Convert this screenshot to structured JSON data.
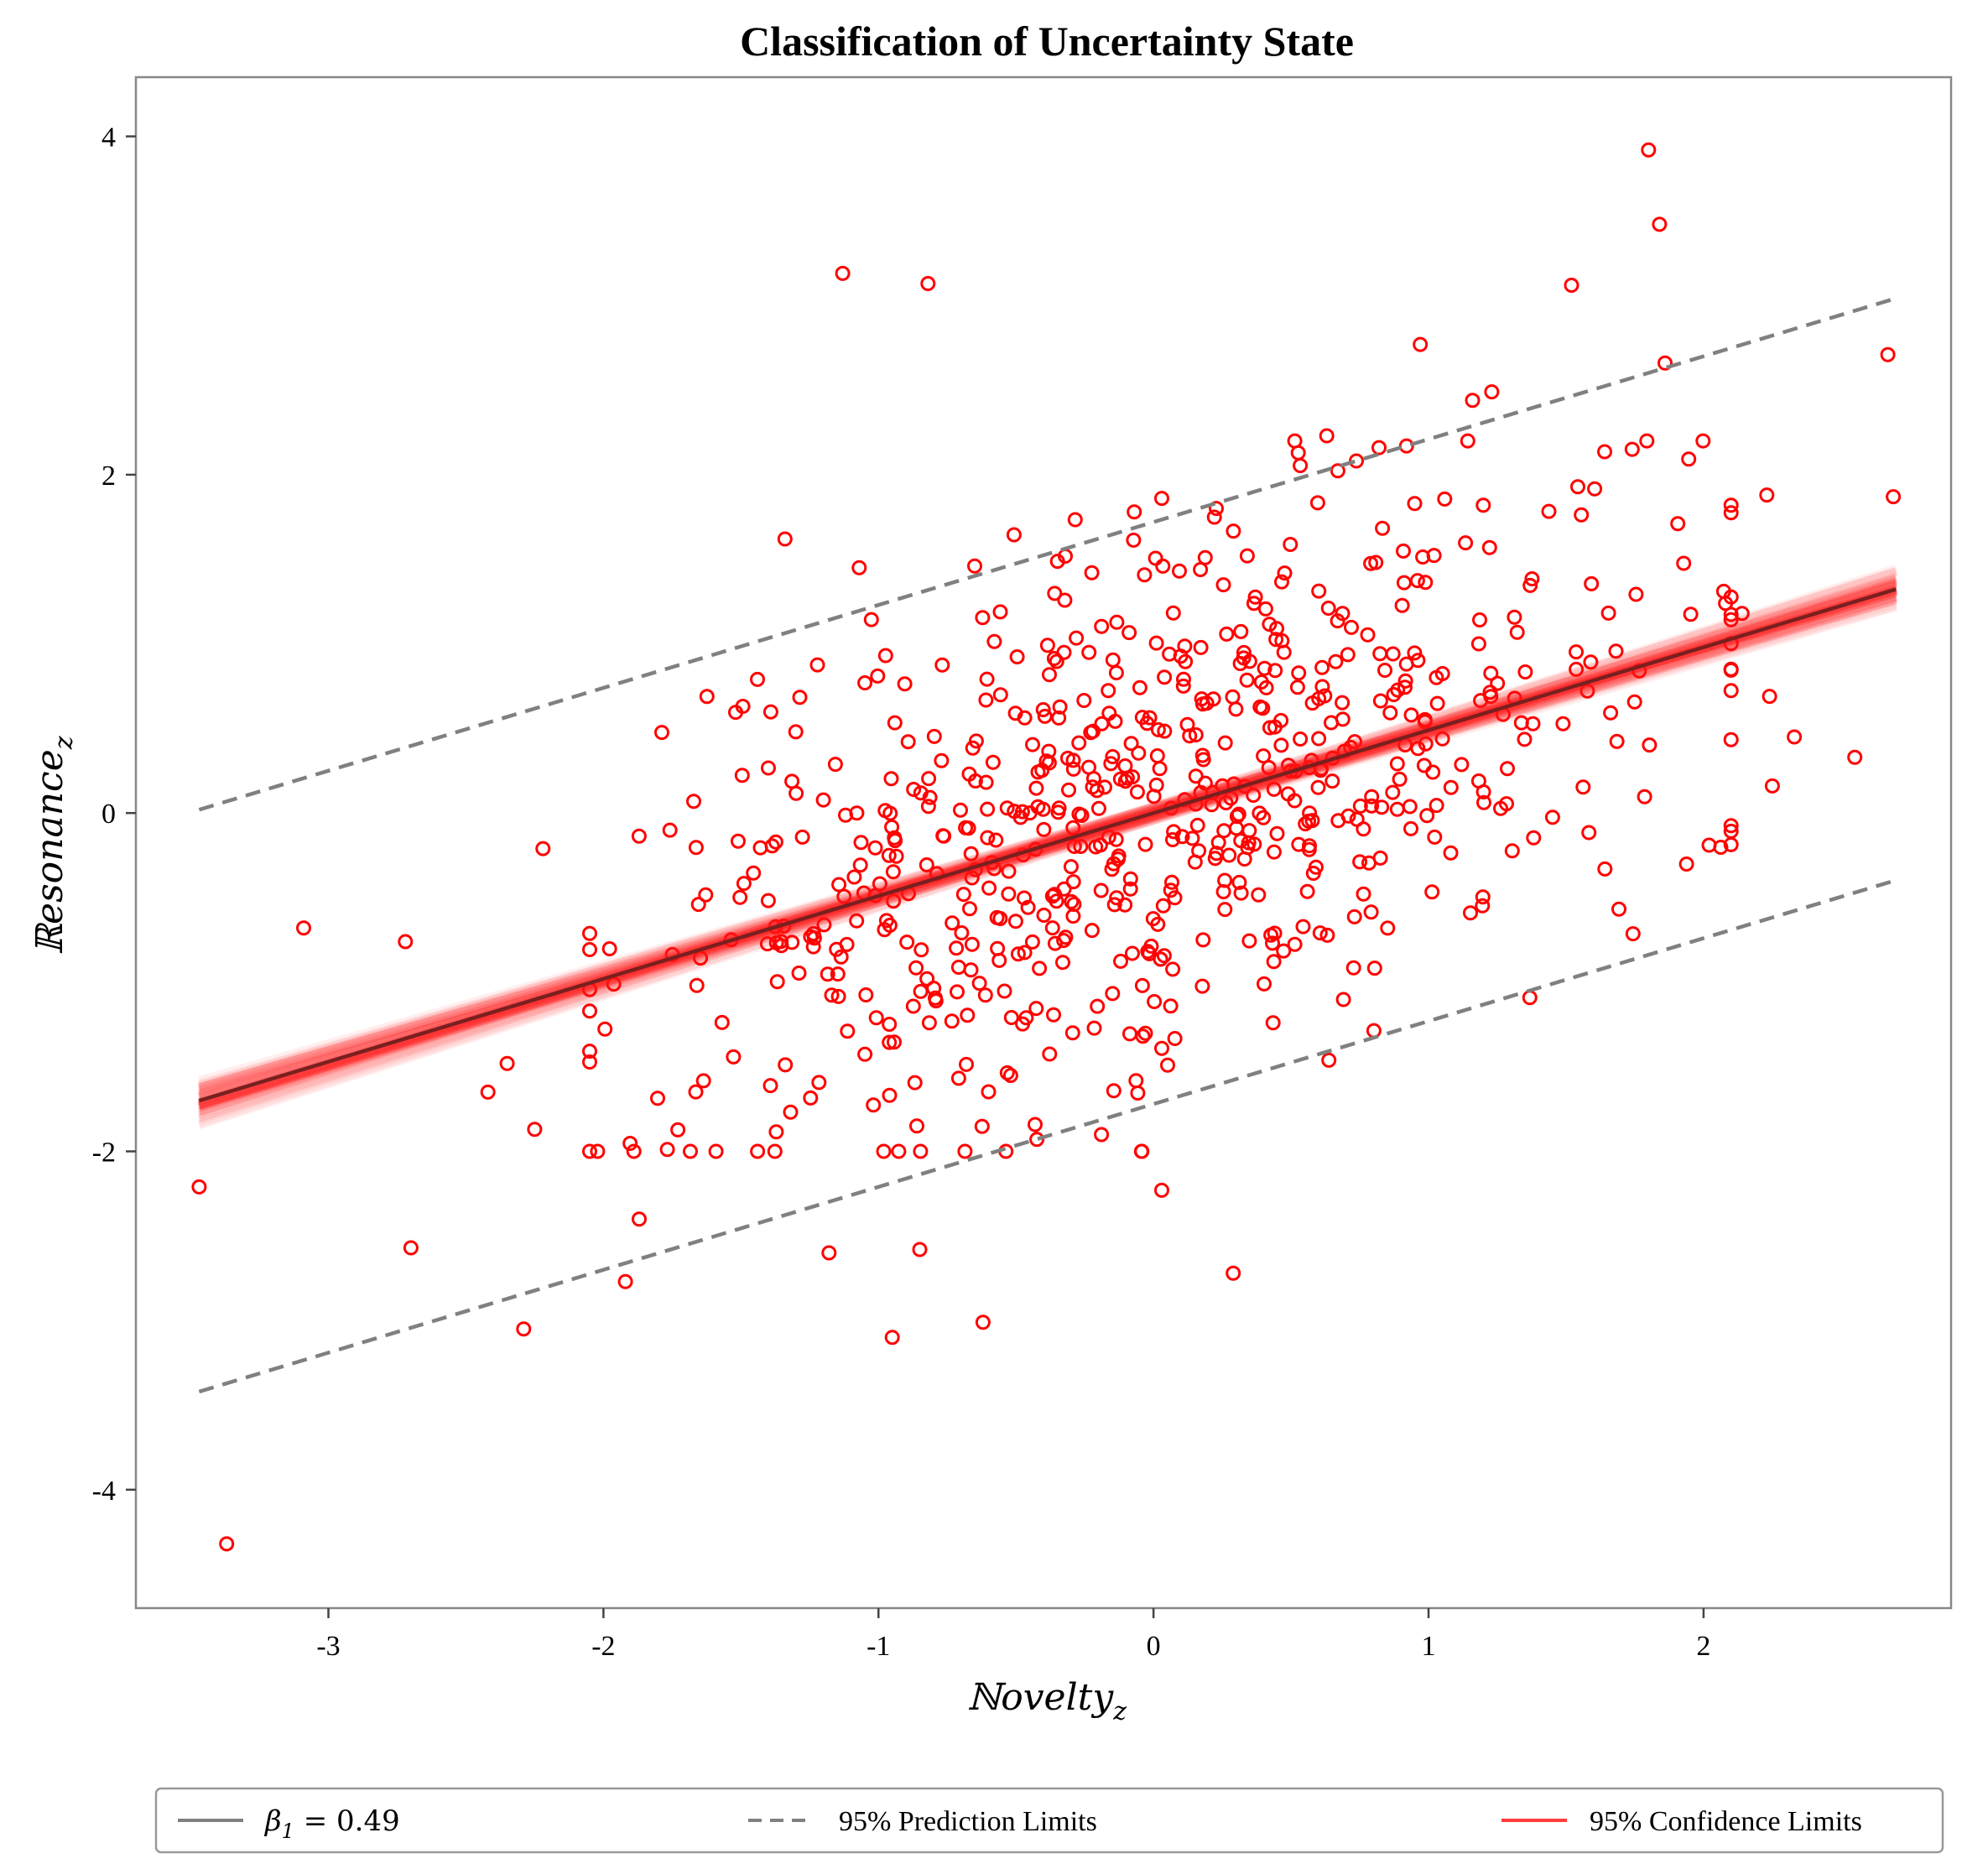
{
  "chart_data": {
    "type": "scatter",
    "title": "Classification of Uncertainty State",
    "xlabel": "ℕovelty",
    "xlabel_sub": "z",
    "ylabel": "ℝesonance",
    "ylabel_sub": "z",
    "xlim": [
      -3.7,
      2.9
    ],
    "ylim": [
      -4.7,
      4.35
    ],
    "x_ticks": [
      -3,
      -2,
      -1,
      0,
      1,
      2
    ],
    "y_ticks": [
      -4,
      -2,
      0,
      2,
      4
    ],
    "grid": false,
    "legend_position": "bottom",
    "colors": {
      "points": "#ff0000",
      "regression": "#7a1f1f",
      "prediction": "#808080",
      "confidence": "#ff2020"
    },
    "regression": {
      "slope": 0.49,
      "intercept": 0.0,
      "x_range": [
        -3.47,
        2.7
      ]
    },
    "prediction_limits": {
      "offset": 1.72
    },
    "confidence_band": {
      "x_range": [
        -3.47,
        2.7
      ]
    },
    "legend": [
      {
        "label": "β",
        "sub": "1",
        "rest": " = 0.49",
        "style": "solid",
        "color": "#808080"
      },
      {
        "label": "95% Prediction Limits",
        "style": "dashed",
        "color": "#808080"
      },
      {
        "label": "95% Confidence Limits",
        "style": "solid",
        "color": "#ff3b3b"
      }
    ],
    "outliers": [
      {
        "x": -3.47,
        "y": -2.21
      },
      {
        "x": -3.37,
        "y": -4.32
      },
      {
        "x": -3.09,
        "y": -0.68
      },
      {
        "x": -2.72,
        "y": -0.76
      },
      {
        "x": -2.7,
        "y": -2.57
      },
      {
        "x": -2.42,
        "y": -1.65
      },
      {
        "x": -2.35,
        "y": -1.48
      },
      {
        "x": -2.29,
        "y": -3.05
      },
      {
        "x": -2.25,
        "y": -1.87
      },
      {
        "x": -2.22,
        "y": -0.21
      },
      {
        "x": -1.92,
        "y": -2.77
      },
      {
        "x": -1.87,
        "y": -2.4
      },
      {
        "x": -1.13,
        "y": 3.19
      },
      {
        "x": -0.82,
        "y": 3.13
      },
      {
        "x": -1.18,
        "y": -2.6
      },
      {
        "x": -0.95,
        "y": -3.1
      },
      {
        "x": -0.62,
        "y": -3.01
      },
      {
        "x": -0.85,
        "y": -2.58
      },
      {
        "x": 0.03,
        "y": -2.23
      },
      {
        "x": 0.29,
        "y": -2.72
      },
      {
        "x": 0.97,
        "y": 2.77
      },
      {
        "x": 1.52,
        "y": 3.12
      },
      {
        "x": 1.8,
        "y": 3.92
      },
      {
        "x": 1.84,
        "y": 3.48
      },
      {
        "x": 1.86,
        "y": 2.66
      },
      {
        "x": 2.67,
        "y": 2.71
      },
      {
        "x": 2.69,
        "y": 1.87
      },
      {
        "x": 2.55,
        "y": 0.33
      },
      {
        "x": 2.33,
        "y": 0.45
      },
      {
        "x": 2.24,
        "y": 0.69
      },
      {
        "x": 2.25,
        "y": 0.16
      },
      {
        "x": 2.23,
        "y": 1.88
      },
      {
        "x": 2.02,
        "y": -0.19
      },
      {
        "x": 2.08,
        "y": 1.24
      },
      {
        "x": 2.14,
        "y": 1.18
      },
      {
        "x": 1.16,
        "y": 2.44
      },
      {
        "x": 1.23,
        "y": 2.49
      },
      {
        "x": 0.63,
        "y": 2.23
      },
      {
        "x": 0.82,
        "y": 2.16
      },
      {
        "x": 0.92,
        "y": 2.17
      },
      {
        "x": -0.07,
        "y": 1.78
      },
      {
        "x": 0.03,
        "y": 1.86
      },
      {
        "x": -1.34,
        "y": 1.62
      },
      {
        "x": -0.65,
        "y": 1.46
      },
      {
        "x": -1.07,
        "y": 1.45
      }
    ],
    "cloud": {
      "count": 700,
      "x_mean": 0.0,
      "x_sd": 0.95,
      "noise_sd": 0.8,
      "seed": 7
    }
  }
}
